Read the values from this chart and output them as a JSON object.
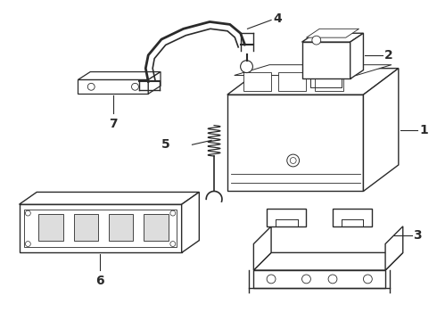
{
  "background_color": "#ffffff",
  "line_color": "#2a2a2a",
  "label_color": "#000000",
  "figsize": [
    4.9,
    3.6
  ],
  "dpi": 100,
  "parts": [
    "1",
    "2",
    "3",
    "4",
    "5",
    "6",
    "7"
  ]
}
